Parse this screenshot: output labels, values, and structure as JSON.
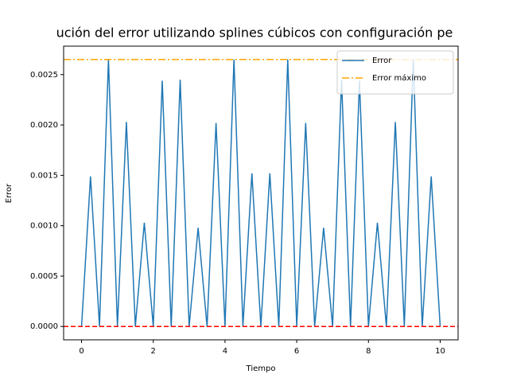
{
  "chart_data": {
    "type": "line",
    "title": "ución del error utilizando splines cúbicos con configuración pe",
    "xlabel": "Tiempo",
    "ylabel": "Error",
    "x": [
      0,
      0.125,
      0.25,
      0.375,
      0.5,
      0.625,
      0.75,
      0.875,
      1,
      1.125,
      1.25,
      1.375,
      1.5,
      1.625,
      1.75,
      1.875,
      2,
      2.125,
      2.25,
      2.375,
      2.5,
      2.625,
      2.75,
      2.875,
      3,
      3.125,
      3.25,
      3.375,
      3.5,
      3.625,
      3.75,
      3.875,
      4,
      4.125,
      4.25,
      4.375,
      4.5,
      4.625,
      4.75,
      4.875,
      5,
      5.125,
      5.25,
      5.375,
      5.5,
      5.625,
      5.75,
      5.875,
      6,
      6.125,
      6.25,
      6.375,
      6.5,
      6.625,
      6.75,
      6.875,
      7,
      7.125,
      7.25,
      7.375,
      7.5,
      7.625,
      7.75,
      7.875,
      8,
      8.125,
      8.25,
      8.375,
      8.5,
      8.625,
      8.75,
      8.875,
      9,
      9.125,
      9.25,
      9.375,
      9.5,
      9.625,
      9.75,
      9.875,
      10
    ],
    "series": [
      {
        "name": "Error",
        "color": "#1f77b4",
        "values": [
          0,
          0.000745,
          0.00149,
          0.000745,
          0,
          0.001325,
          0.00265,
          0.001325,
          0,
          0.001015,
          0.00203,
          0.001015,
          0,
          0.000515,
          0.00103,
          0.000515,
          0,
          0.00122,
          0.00244,
          0.00122,
          0,
          0.001225,
          0.00245,
          0.001225,
          0,
          0.00049,
          0.00098,
          0.00049,
          0,
          0.00101,
          0.00202,
          0.00101,
          0,
          0.001325,
          0.00265,
          0.001325,
          0,
          0.00076,
          0.00152,
          0.00076,
          0,
          0.00076,
          0.00152,
          0.00076,
          0,
          0.001325,
          0.00265,
          0.001325,
          0,
          0.00101,
          0.00202,
          0.00101,
          0,
          0.00049,
          0.00098,
          0.00049,
          0,
          0.001225,
          0.00245,
          0.001225,
          0,
          0.00122,
          0.00244,
          0.00122,
          0,
          0.000515,
          0.00103,
          0.000515,
          0,
          0.001015,
          0.00203,
          0.001015,
          0,
          0.001325,
          0.00265,
          0.001325,
          0,
          0.000745,
          0.00149,
          0.000745,
          0
        ]
      }
    ],
    "hlines": [
      {
        "name": "Error máximo",
        "value": 0.00265,
        "color": "#ffa500",
        "style": "dashdot"
      },
      {
        "value": 0,
        "color": "#ff0000",
        "style": "dashed"
      }
    ],
    "xlim": [
      -0.5,
      10.5
    ],
    "ylim": [
      -0.0001325,
      0.0027825
    ],
    "xticks": [
      0,
      2,
      4,
      6,
      8,
      10
    ],
    "yticks": [
      {
        "value": 0,
        "label": "0.0000"
      },
      {
        "value": 0.0005,
        "label": "0.0005"
      },
      {
        "value": 0.001,
        "label": "0.0010"
      },
      {
        "value": 0.0015,
        "label": "0.0015"
      },
      {
        "value": 0.002,
        "label": "0.0020"
      },
      {
        "value": 0.0025,
        "label": "0.0025"
      }
    ],
    "legend": "upper right",
    "grid": false
  }
}
